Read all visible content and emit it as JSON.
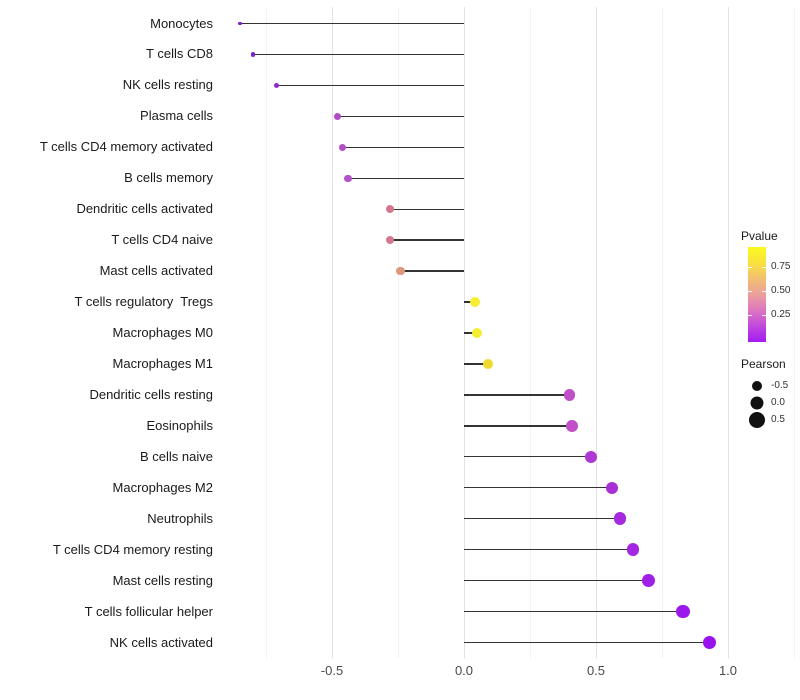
{
  "chart_data": {
    "type": "lollipop",
    "title": "",
    "xlabel": "",
    "ylabel": "",
    "x_axis": {
      "ticks": [
        {
          "label": "-0.5",
          "value": -0.5
        },
        {
          "label": "0.0",
          "value": 0.0
        },
        {
          "label": "0.5",
          "value": 0.5
        },
        {
          "label": "1.0",
          "value": 1.0
        }
      ],
      "minor_gridlines": [
        -0.75,
        -0.25,
        0.25,
        0.75,
        1.25
      ],
      "range": [
        -0.9,
        1.25
      ]
    },
    "grid": "vertical-only",
    "legend_position": "right",
    "rows": [
      {
        "name": "Monocytes",
        "pearson": -0.85,
        "pvalue_est": 0.05,
        "color": "#7a1bd4"
      },
      {
        "name": "T cells CD8",
        "pearson": -0.8,
        "pvalue_est": 0.07,
        "color": "#7e20d2"
      },
      {
        "name": "NK cells resting",
        "pearson": -0.71,
        "pvalue_est": 0.1,
        "color": "#8c2cd0"
      },
      {
        "name": "Plasma cells",
        "pearson": -0.48,
        "pvalue_est": 0.2,
        "color": "#b14bc9"
      },
      {
        "name": "T cells CD4 memory activated",
        "pearson": -0.46,
        "pvalue_est": 0.21,
        "color": "#b44fc7"
      },
      {
        "name": "B cells memory",
        "pearson": -0.44,
        "pvalue_est": 0.22,
        "color": "#b551c6"
      },
      {
        "name": "Dendritic cells activated",
        "pearson": -0.28,
        "pvalue_est": 0.45,
        "color": "#d2798f"
      },
      {
        "name": "T cells CD4 naive",
        "pearson": -0.28,
        "pvalue_est": 0.45,
        "color": "#d2798f"
      },
      {
        "name": "Mast cells activated",
        "pearson": -0.24,
        "pvalue_est": 0.55,
        "color": "#dd977b"
      },
      {
        "name": "T cells regulatory  Tregs",
        "pearson": 0.04,
        "pvalue_est": 0.88,
        "color": "#f6ee33"
      },
      {
        "name": "Macrophages M0",
        "pearson": 0.05,
        "pvalue_est": 0.88,
        "color": "#f6ee33"
      },
      {
        "name": "Macrophages M1",
        "pearson": 0.09,
        "pvalue_est": 0.8,
        "color": "#f0d92e"
      },
      {
        "name": "Dendritic cells resting",
        "pearson": 0.4,
        "pvalue_est": 0.3,
        "color": "#c050c8"
      },
      {
        "name": "Eosinophils",
        "pearson": 0.41,
        "pvalue_est": 0.3,
        "color": "#c050c8"
      },
      {
        "name": "B cells naive",
        "pearson": 0.48,
        "pvalue_est": 0.18,
        "color": "#ae38d2"
      },
      {
        "name": "Macrophages M2",
        "pearson": 0.56,
        "pvalue_est": 0.14,
        "color": "#a92fd9"
      },
      {
        "name": "Neutrophils",
        "pearson": 0.59,
        "pvalue_est": 0.12,
        "color": "#a52add"
      },
      {
        "name": "T cells CD4 memory resting",
        "pearson": 0.64,
        "pvalue_est": 0.1,
        "color": "#a226e2"
      },
      {
        "name": "Mast cells resting",
        "pearson": 0.7,
        "pvalue_est": 0.08,
        "color": "#9e1fe6"
      },
      {
        "name": "T cells follicular helper",
        "pearson": 0.83,
        "pvalue_est": 0.05,
        "color": "#9a18ec"
      },
      {
        "name": "NK cells activated",
        "pearson": 0.93,
        "pvalue_est": 0.03,
        "color": "#9912ee"
      }
    ]
  },
  "legend": {
    "pvalue": {
      "title": "Pvalue",
      "tick_labels": [
        "0.75",
        "0.50",
        "0.25"
      ],
      "gradient_stops": [
        "#fcf921",
        "#f8e23d",
        "#f2bf72",
        "#ec9f9b",
        "#dd76c0",
        "#c148dd",
        "#a21bf2"
      ]
    },
    "pearson": {
      "title": "Pearson",
      "dot_color": "#111111",
      "entries": [
        {
          "label": "-0.5",
          "value": -0.5
        },
        {
          "label": "0.0",
          "value": 0.0
        },
        {
          "label": "0.5",
          "value": 0.5
        }
      ]
    }
  }
}
